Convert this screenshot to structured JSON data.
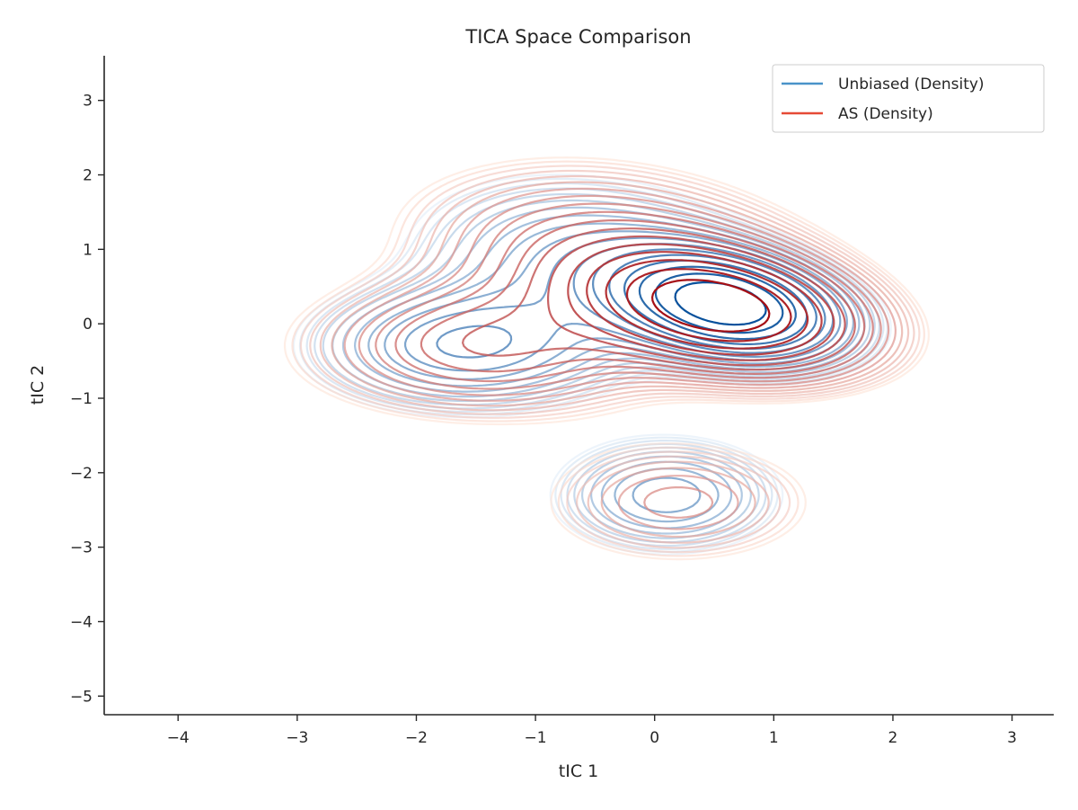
{
  "chart_data": {
    "type": "contour",
    "title": "TICA Space Comparison",
    "xlabel": "tIC 1",
    "ylabel": "tIC 2",
    "xlim": [
      -4.62,
      3.35
    ],
    "ylim": [
      -5.25,
      3.6
    ],
    "x_ticks": [
      -4,
      -3,
      -2,
      -1,
      0,
      1,
      2,
      3
    ],
    "y_ticks": [
      -5,
      -4,
      -3,
      -2,
      -1,
      0,
      1,
      2,
      3
    ],
    "x_tick_labels": [
      "−4",
      "−3",
      "−2",
      "−1",
      "0",
      "1",
      "2",
      "3"
    ],
    "y_tick_labels": [
      "−5",
      "−4",
      "−3",
      "−2",
      "−1",
      "0",
      "1",
      "2",
      "3"
    ],
    "grid": false,
    "legend_position": "top-right",
    "series": [
      {
        "name": "Unbiased (Density)",
        "legend_color": "#4a93c9",
        "color_light": "#deebf7",
        "color_dark": "#08519c",
        "levels": 18,
        "components": [
          {
            "x": 0.6,
            "y": 0.25,
            "sx": 0.55,
            "sy": 0.42,
            "rho": -0.3,
            "w": 1.0
          },
          {
            "x": -1.6,
            "y": -0.3,
            "sx": 0.75,
            "sy": 0.5,
            "rho": 0.0,
            "w": 0.28
          },
          {
            "x": 0.1,
            "y": -2.3,
            "sx": 0.55,
            "sy": 0.45,
            "rho": 0.0,
            "w": 0.22
          },
          {
            "x": -0.5,
            "y": 0.8,
            "sx": 0.9,
            "sy": 0.7,
            "rho": -0.2,
            "w": 0.2
          }
        ]
      },
      {
        "name": "AS (Density)",
        "legend_color": "#e64a36",
        "color_light": "#fee0d2",
        "color_dark": "#a50f15",
        "levels": 18,
        "components": [
          {
            "x": 0.55,
            "y": 0.2,
            "sx": 0.7,
            "sy": 0.5,
            "rho": -0.3,
            "w": 1.0
          },
          {
            "x": -1.4,
            "y": -0.3,
            "sx": 0.9,
            "sy": 0.55,
            "rho": 0.0,
            "w": 0.28
          },
          {
            "x": 0.2,
            "y": -2.4,
            "sx": 0.7,
            "sy": 0.5,
            "rho": 0.0,
            "w": 0.15
          },
          {
            "x": -0.4,
            "y": 1.0,
            "sx": 1.0,
            "sy": 0.7,
            "rho": -0.2,
            "w": 0.22
          }
        ]
      }
    ]
  }
}
